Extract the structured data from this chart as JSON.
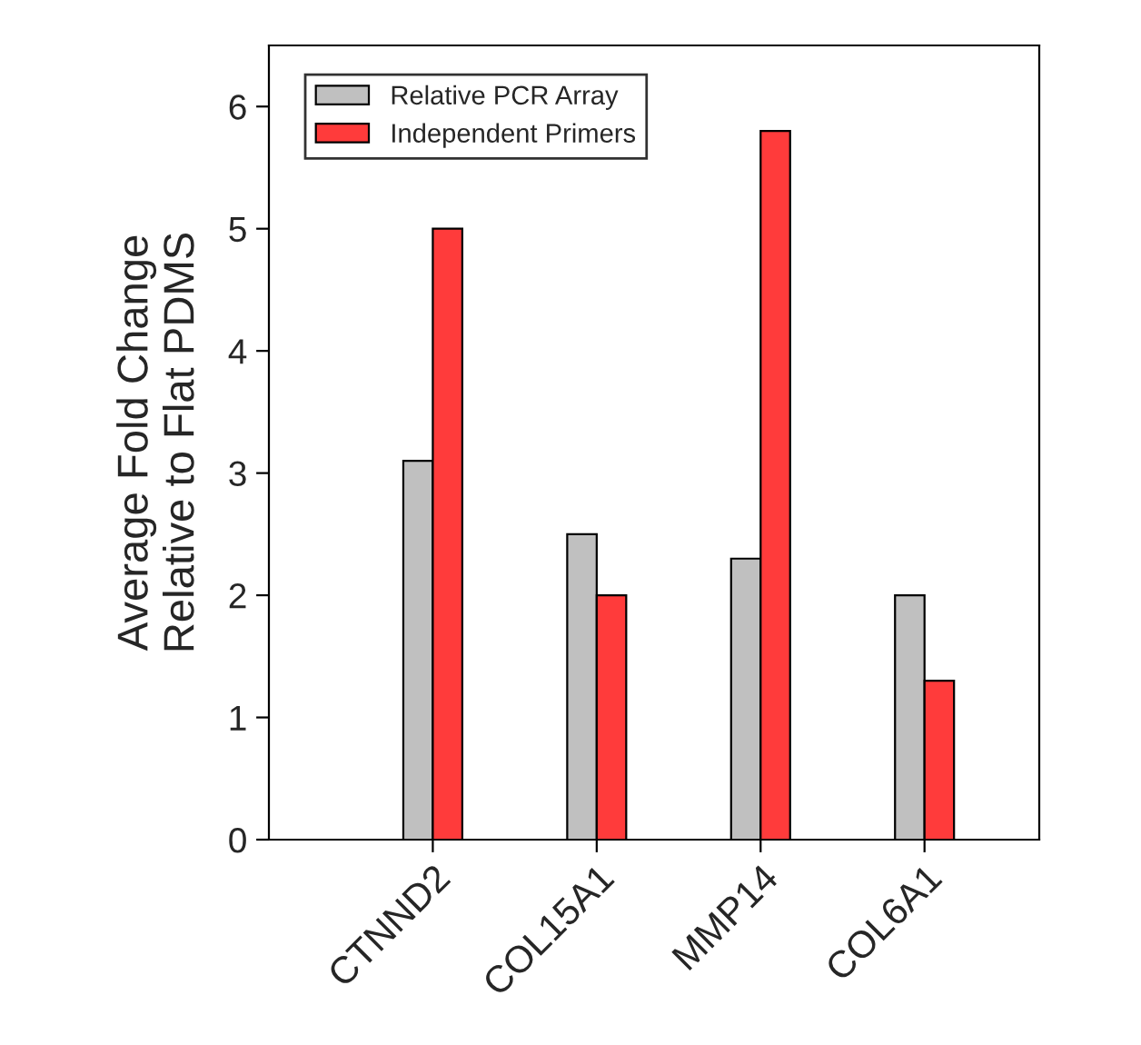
{
  "chart_data": {
    "type": "bar",
    "ylabel": "Average Fold Change\nRelative to Flat PDMS",
    "categories": [
      "CTNND2",
      "COL15A1",
      "MMP14",
      "COL6A1"
    ],
    "series": [
      {
        "name": "Relative PCR Array",
        "color": "#c0c0c0",
        "values": [
          3.1,
          2.5,
          2.3,
          2.0
        ]
      },
      {
        "name": "Independent Primers",
        "color": "#ff3b3b",
        "values": [
          5.0,
          2.0,
          5.8,
          1.3
        ]
      }
    ],
    "ylim": [
      0,
      6.5
    ],
    "yticks": [
      0,
      1,
      2,
      3,
      4,
      5,
      6
    ],
    "grid": false,
    "legend": "top left"
  }
}
